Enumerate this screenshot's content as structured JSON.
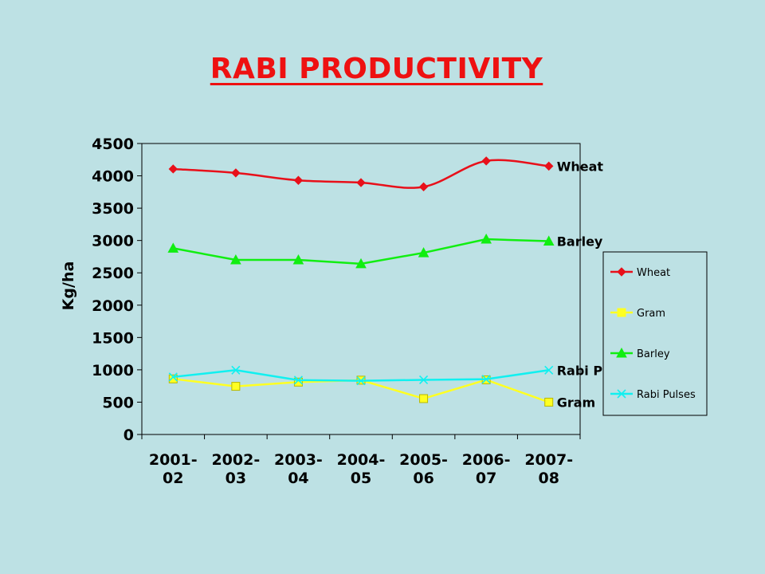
{
  "slide": {
    "title": "RABI PRODUCTIVITY"
  },
  "chart_data": {
    "type": "line",
    "title": "",
    "xlabel": "",
    "ylabel": "Kg/ha",
    "categories": [
      "2001-\n02",
      "2002-\n03",
      "2003-\n04",
      "2004-\n05",
      "2005-\n06",
      "2006-\n07",
      "2007-\n08"
    ],
    "ylim": [
      0,
      4500
    ],
    "yticks": [
      0,
      500,
      1000,
      1500,
      2000,
      2500,
      3000,
      3500,
      4000,
      4500
    ],
    "grid": false,
    "legend": "right",
    "series": [
      {
        "name": "Wheat",
        "color": "#e8101a",
        "marker": "diamond",
        "end_label": "Wheat",
        "values": [
          4106,
          4045,
          3930,
          3895,
          3830,
          4230,
          4150
        ]
      },
      {
        "name": "Gram",
        "color": "#ffff22",
        "marker": "square",
        "end_label": "Gram",
        "values": [
          860,
          745,
          810,
          840,
          555,
          845,
          500
        ]
      },
      {
        "name": "Barley",
        "color": "#11ee11",
        "marker": "triangle",
        "end_label": "Barley",
        "values": [
          2880,
          2700,
          2700,
          2640,
          2810,
          3020,
          2990
        ]
      },
      {
        "name": "Rabi Pulses",
        "color": "#11f0f0",
        "marker": "x",
        "end_label": "Rabi Pulses",
        "values": [
          890,
          995,
          840,
          830,
          845,
          855,
          995
        ]
      }
    ]
  }
}
